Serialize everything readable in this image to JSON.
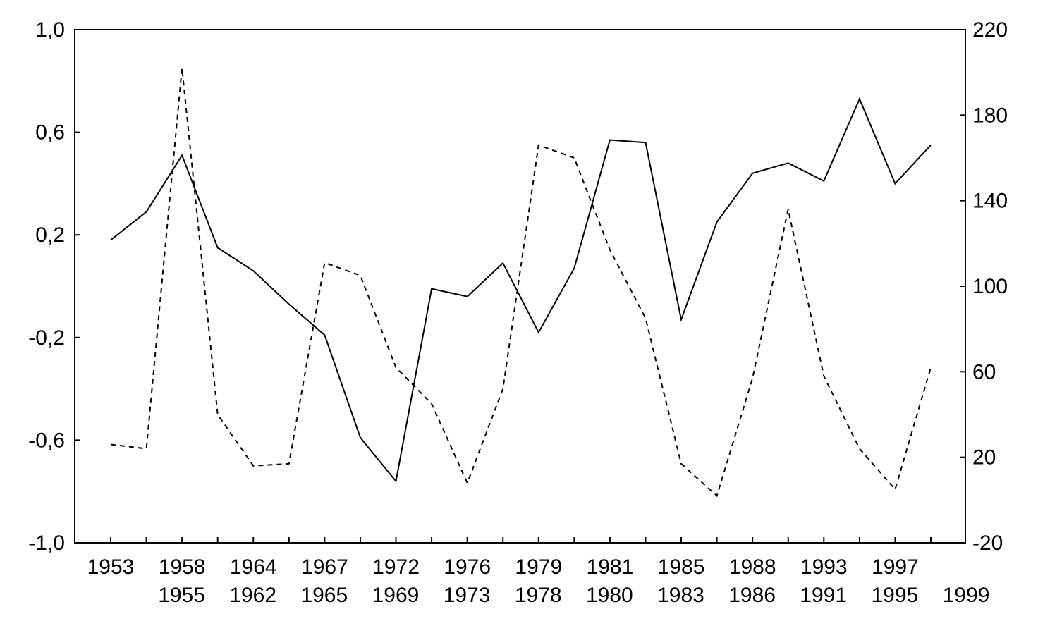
{
  "chart_data": {
    "type": "line",
    "title": "",
    "xlabel": "",
    "ylabel": "",
    "y2label": "",
    "grid": false,
    "legend": "none",
    "categories": [
      "1953",
      "1955",
      "1958",
      "1962",
      "1964",
      "1965",
      "1967",
      "1969",
      "1972",
      "1973",
      "1976",
      "1978",
      "1979",
      "1980",
      "1981",
      "1983",
      "1985",
      "1986",
      "1988",
      "1991",
      "1993",
      "1995",
      "1997",
      "1999"
    ],
    "ylim": [
      -1.0,
      1.0
    ],
    "y_ticks": [
      "1,0",
      "0,6",
      "0,2",
      "-0,2",
      "-0,6",
      "-1,0"
    ],
    "y_tick_values": [
      1.0,
      0.6,
      0.2,
      -0.2,
      -0.6,
      -1.0
    ],
    "y2lim": [
      -20,
      220
    ],
    "y2_ticks": [
      "220",
      "180",
      "140",
      "100",
      "60",
      "20",
      "-20"
    ],
    "y2_tick_values": [
      220,
      180,
      140,
      100,
      60,
      20,
      -20
    ],
    "series": [
      {
        "axis": "left",
        "style": "solid",
        "color": "#000000",
        "values": [
          0.18,
          0.29,
          0.51,
          0.15,
          0.06,
          -0.07,
          -0.19,
          -0.59,
          -0.76,
          -0.01,
          -0.04,
          0.09,
          -0.18,
          0.07,
          0.57,
          0.56,
          -0.13,
          0.25,
          0.44,
          0.48,
          0.41,
          0.73,
          0.4,
          0.55
        ]
      },
      {
        "axis": "right",
        "style": "dashed",
        "color": "#000000",
        "values": [
          26,
          24,
          202,
          40,
          16,
          17,
          111,
          105,
          62,
          45,
          8,
          52,
          166,
          160,
          117,
          85,
          17,
          2,
          57,
          136,
          58,
          24,
          5,
          62
        ]
      }
    ]
  }
}
